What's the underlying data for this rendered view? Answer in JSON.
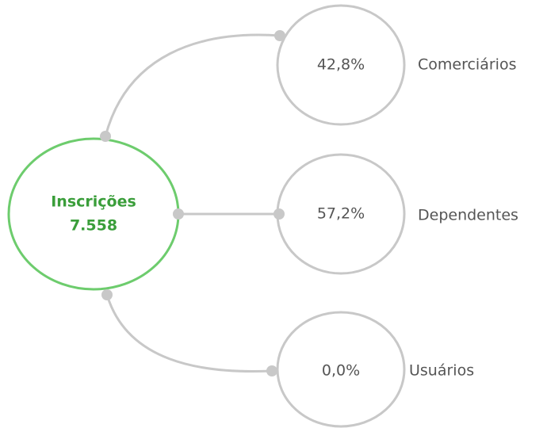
{
  "center": {
    "label": "Inscrições",
    "value": "7.558"
  },
  "nodes": [
    {
      "percent": "42,8%",
      "label": "Comerciários"
    },
    {
      "percent": "57,2%",
      "label": "Dependentes"
    },
    {
      "percent": "0,0%",
      "label": "Usuários"
    }
  ]
}
